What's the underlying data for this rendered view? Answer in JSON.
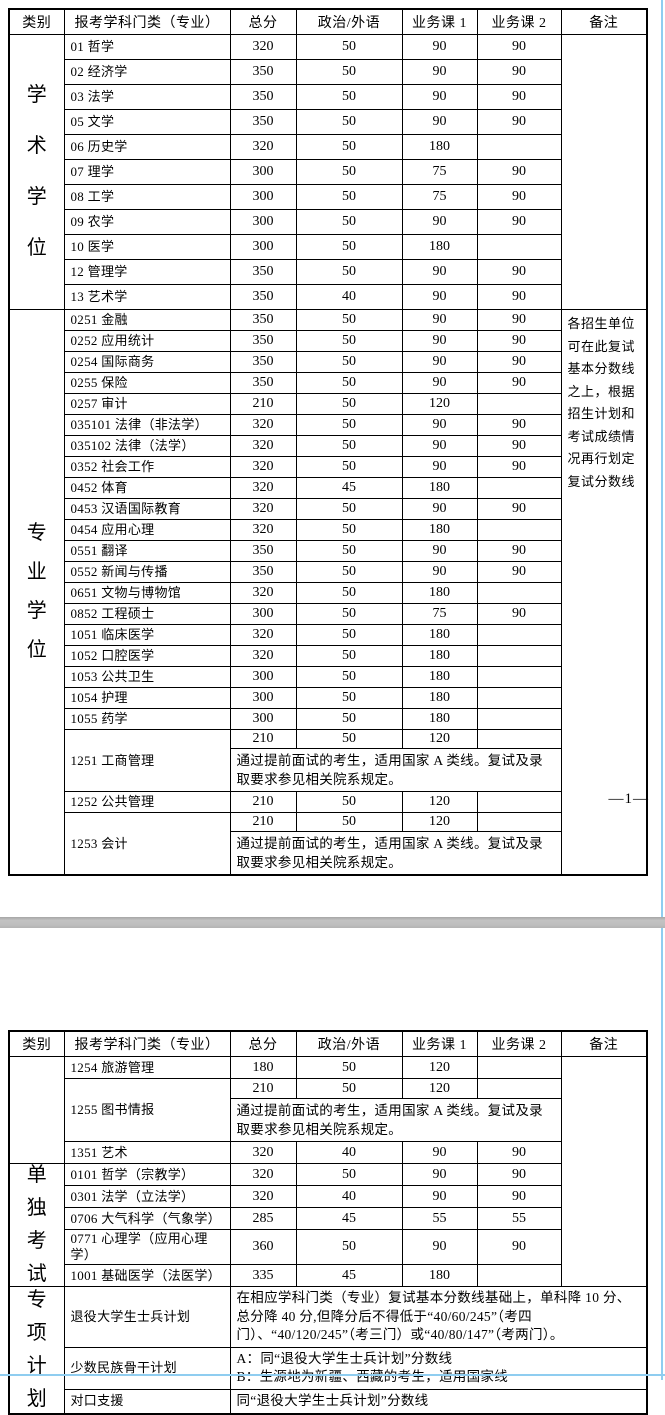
{
  "colors": {
    "accent_blue": "#8fcdf0",
    "separator_gray": "#bdbdbd",
    "table_border": "#000000"
  },
  "page1": {
    "header": [
      "类别",
      "报考学科门类（专业）",
      "总分",
      "政治/外语",
      "业务课 1",
      "业务课 2",
      "备注"
    ],
    "page_number": "—1—",
    "sections": [
      {
        "category": "学术学位",
        "remark": "",
        "rows": [
          {
            "name": "01 哲学",
            "scores": [
              "320",
              "50",
              "90",
              "90"
            ]
          },
          {
            "name": "02 经济学",
            "scores": [
              "350",
              "50",
              "90",
              "90"
            ]
          },
          {
            "name": "03 法学",
            "scores": [
              "350",
              "50",
              "90",
              "90"
            ]
          },
          {
            "name": "05 文学",
            "scores": [
              "350",
              "50",
              "90",
              "90"
            ]
          },
          {
            "name": "06 历史学",
            "scores": [
              "320",
              "50",
              "180",
              ""
            ]
          },
          {
            "name": "07 理学",
            "scores": [
              "300",
              "50",
              "75",
              "90"
            ]
          },
          {
            "name": "08 工学",
            "scores": [
              "300",
              "50",
              "75",
              "90"
            ]
          },
          {
            "name": "09 农学",
            "scores": [
              "300",
              "50",
              "90",
              "90"
            ]
          },
          {
            "name": "10 医学",
            "scores": [
              "300",
              "50",
              "180",
              ""
            ]
          },
          {
            "name": "12 管理学",
            "scores": [
              "350",
              "50",
              "90",
              "90"
            ]
          },
          {
            "name": "13 艺术学",
            "scores": [
              "350",
              "40",
              "90",
              "90"
            ]
          }
        ]
      },
      {
        "category": "专业学位",
        "remark": "各招生单位可在此复试基本分数线之上，根据招生计划和考试成绩情况再行划定复试分数线",
        "rows": [
          {
            "name": "0251 金融",
            "scores": [
              "350",
              "50",
              "90",
              "90"
            ]
          },
          {
            "name": "0252 应用统计",
            "scores": [
              "350",
              "50",
              "90",
              "90"
            ]
          },
          {
            "name": "0254 国际商务",
            "scores": [
              "350",
              "50",
              "90",
              "90"
            ]
          },
          {
            "name": "0255 保险",
            "scores": [
              "350",
              "50",
              "90",
              "90"
            ]
          },
          {
            "name": "0257 审计",
            "scores": [
              "210",
              "50",
              "120",
              ""
            ]
          },
          {
            "name": "035101 法律（非法学）",
            "scores": [
              "320",
              "50",
              "90",
              "90"
            ]
          },
          {
            "name": "035102 法律（法学）",
            "scores": [
              "320",
              "50",
              "90",
              "90"
            ]
          },
          {
            "name": "0352 社会工作",
            "scores": [
              "320",
              "50",
              "90",
              "90"
            ]
          },
          {
            "name": "0452 体育",
            "scores": [
              "320",
              "45",
              "180",
              ""
            ]
          },
          {
            "name": "0453 汉语国际教育",
            "scores": [
              "320",
              "50",
              "90",
              "90"
            ]
          },
          {
            "name": "0454 应用心理",
            "scores": [
              "320",
              "50",
              "180",
              ""
            ]
          },
          {
            "name": "0551 翻译",
            "scores": [
              "350",
              "50",
              "90",
              "90"
            ]
          },
          {
            "name": "0552 新闻与传播",
            "scores": [
              "350",
              "50",
              "90",
              "90"
            ]
          },
          {
            "name": "0651 文物与博物馆",
            "scores": [
              "320",
              "50",
              "180",
              ""
            ]
          },
          {
            "name": "0852 工程硕士",
            "scores": [
              "300",
              "50",
              "75",
              "90"
            ]
          },
          {
            "name": "1051 临床医学",
            "scores": [
              "320",
              "50",
              "180",
              ""
            ]
          },
          {
            "name": "1052 口腔医学",
            "scores": [
              "320",
              "50",
              "180",
              ""
            ]
          },
          {
            "name": "1053 公共卫生",
            "scores": [
              "300",
              "50",
              "180",
              ""
            ]
          },
          {
            "name": "1054 护理",
            "scores": [
              "300",
              "50",
              "180",
              ""
            ]
          },
          {
            "name": "1055 药学",
            "scores": [
              "300",
              "50",
              "180",
              ""
            ]
          },
          {
            "name": "1251 工商管理",
            "scores": [
              "210",
              "50",
              "120",
              ""
            ],
            "note": "通过提前面试的考生，适用国家 A 类线。复试及录取要求参见相关院系规定。"
          },
          {
            "name": "1252 公共管理",
            "scores": [
              "210",
              "50",
              "120",
              ""
            ]
          },
          {
            "name": "1253 会计",
            "scores": [
              "210",
              "50",
              "120",
              ""
            ],
            "note": "通过提前面试的考生，适用国家 A 类线。复试及录取要求参见相关院系规定。"
          }
        ]
      }
    ]
  },
  "page2": {
    "header": [
      "类别",
      "报考学科门类（专业）",
      "总分",
      "政治/外语",
      "业务课 1",
      "业务课 2",
      "备注"
    ],
    "sections": [
      {
        "category": "",
        "remark": "",
        "rows": [
          {
            "name": "1254 旅游管理",
            "scores": [
              "180",
              "50",
              "120",
              ""
            ]
          },
          {
            "name": "1255 图书情报",
            "scores": [
              "210",
              "50",
              "120",
              ""
            ],
            "note": "通过提前面试的考生，适用国家 A 类线。复试及录取要求参见相关院系规定。"
          },
          {
            "name": "1351 艺术",
            "scores": [
              "320",
              "40",
              "90",
              "90"
            ]
          }
        ]
      },
      {
        "category": "单独考试",
        "remark": "",
        "rows": [
          {
            "name": "0101 哲学（宗教学）",
            "scores": [
              "320",
              "50",
              "90",
              "90"
            ]
          },
          {
            "name": "0301 法学（立法学）",
            "scores": [
              "320",
              "40",
              "90",
              "90"
            ]
          },
          {
            "name": "0706 大气科学（气象学）",
            "scores": [
              "285",
              "45",
              "55",
              "55"
            ]
          },
          {
            "name": "0771 心理学（应用心理学）",
            "scores": [
              "360",
              "50",
              "90",
              "90"
            ]
          },
          {
            "name": "1001 基础医学（法医学）",
            "scores": [
              "335",
              "45",
              "180",
              ""
            ]
          }
        ]
      },
      {
        "category": "专项计划",
        "rows": [
          {
            "name": "退役大学生士兵计划",
            "note_full": "在相应学科门类（专业）复试基本分数线基础上，单科降 10 分、总分降 40 分,但降分后不得低于“40/60/245”（考四门）、“40/120/245”（考三门）或“40/80/147”（考两门）。"
          },
          {
            "name": "少数民族骨干计划",
            "note_full": "A：同“退役大学生士兵计划”分数线\nB：生源地为新疆、西藏的考生，适用国家线"
          },
          {
            "name": "对口支援",
            "note_full": "同“退役大学生士兵计划”分数线"
          }
        ]
      }
    ]
  }
}
